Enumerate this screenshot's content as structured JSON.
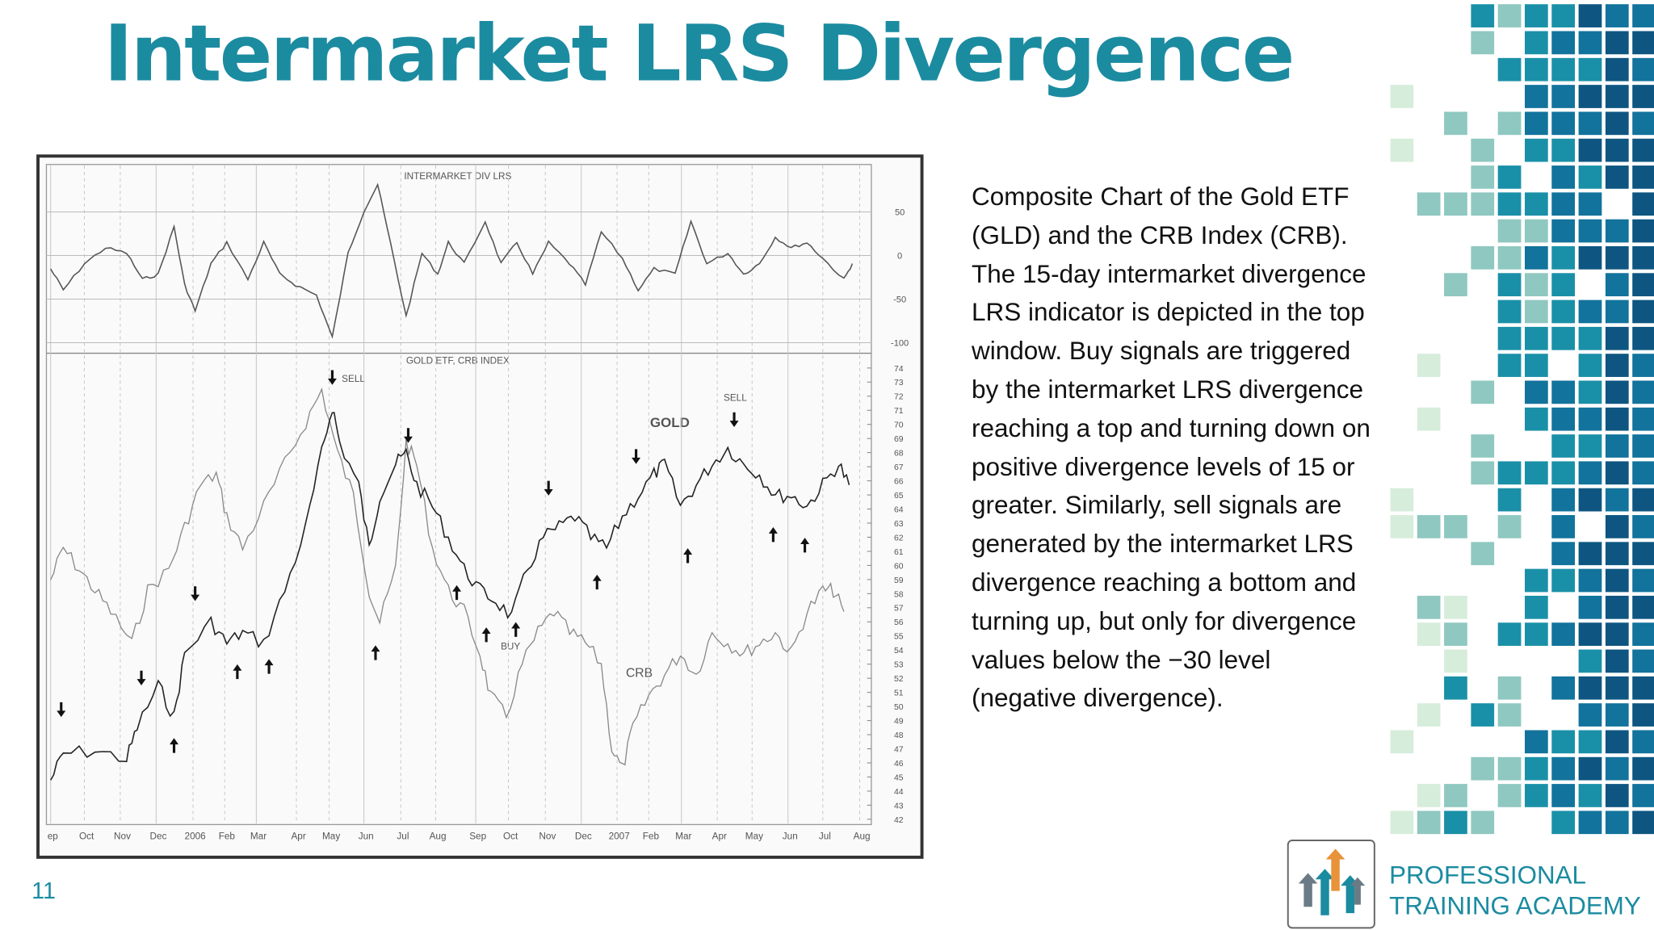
{
  "title": "Intermarket LRS Divergence",
  "page_number": "11",
  "figure": {
    "top_panel_title": "INTERMARKET DIV LRS",
    "bottom_panel_title": "GOLD ETF, CRB INDEX",
    "annotations": [
      "SELL",
      "SELL",
      "GOLD",
      "CRB",
      "BUY"
    ],
    "top_axis_ticks": [
      50,
      0,
      -50,
      -100
    ],
    "bottom_axis_ticks": [
      74,
      73,
      72,
      71,
      70,
      69,
      68,
      67,
      66,
      65,
      64,
      63,
      62,
      61,
      60,
      59,
      58,
      57,
      56,
      55,
      54,
      53,
      52,
      51,
      50,
      49,
      48,
      47,
      46,
      45,
      44,
      43,
      42
    ],
    "months": [
      "ep",
      "Oct",
      "Nov",
      "Dec",
      "2006",
      "Feb",
      "Mar",
      "Apr",
      "May",
      "Jun",
      "Jul",
      "Aug",
      "Sep",
      "Oct",
      "Nov",
      "Dec",
      "2007",
      "Feb",
      "Mar",
      "Apr",
      "May",
      "Jun",
      "Jul",
      "Aug"
    ]
  },
  "description": "Composite Chart of the Gold ETF (GLD) and the CRB Index (CRB). The 15-day intermarket divergence LRS indicator is depicted in the top window. Buy signals are triggered by the intermarket LRS divergence reaching a top and turning down on positive divergence levels of 15 or greater. Similarly, sell signals are generated by the intermarket LRS divergence reaching a bottom and turning up, but only for divergence values below the −30 level (negative divergence).",
  "logo": {
    "line1": "PROFESSIONAL",
    "line2": "TRAINING ACADEMY"
  }
}
